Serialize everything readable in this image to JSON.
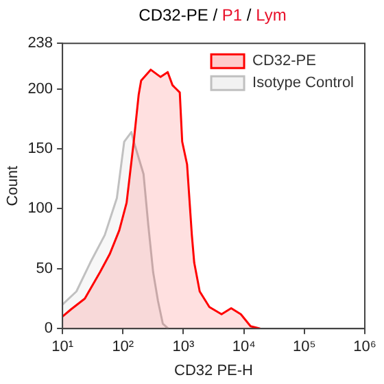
{
  "chart_data": {
    "type": "area",
    "title": "CD32-PE / P1 / Lym",
    "xlabel": "CD32 PE-H",
    "ylabel": "Count",
    "log": "x",
    "xlim": [
      10,
      1000000
    ],
    "xticks": [
      {
        "value": 10,
        "label": "10¹"
      },
      {
        "value": 100,
        "label": "10²"
      },
      {
        "value": 1000,
        "label": "10³"
      },
      {
        "value": 10000,
        "label": "10⁴"
      },
      {
        "value": 100000,
        "label": "10⁵"
      },
      {
        "value": 1000000,
        "label": "10⁶"
      }
    ],
    "ylim": [
      0,
      238
    ],
    "yticks": [
      0,
      50,
      100,
      150,
      200,
      238
    ],
    "grid": false,
    "legend": "top right",
    "series": [
      {
        "name": "CD32-PE",
        "color": "#ff0000",
        "x": [
          10,
          13.8,
          23.4,
          41.7,
          60.3,
          87,
          115,
          151,
          182,
          200,
          288,
          417,
          550,
          661,
          871,
          955,
          1150,
          1380,
          1510,
          1860,
          2690,
          4270,
          6170,
          8910,
          12900,
          18600
        ],
        "values": [
          10,
          16,
          25,
          47,
          62,
          82,
          105,
          156,
          195,
          207,
          216,
          210,
          214,
          203,
          197,
          156,
          137,
          78,
          55,
          31,
          18,
          12,
          17,
          12,
          2,
          0
        ]
      },
      {
        "name": "Isotype Control",
        "color": "#c0c0c0",
        "x": [
          10,
          17,
          28.8,
          50,
          79.4,
          105,
          138,
          151,
          219,
          263,
          316,
          380,
          457,
          562
        ],
        "values": [
          20,
          31,
          55,
          78,
          109,
          156,
          164,
          156,
          129,
          86,
          47,
          23,
          4,
          0
        ]
      }
    ]
  }
}
